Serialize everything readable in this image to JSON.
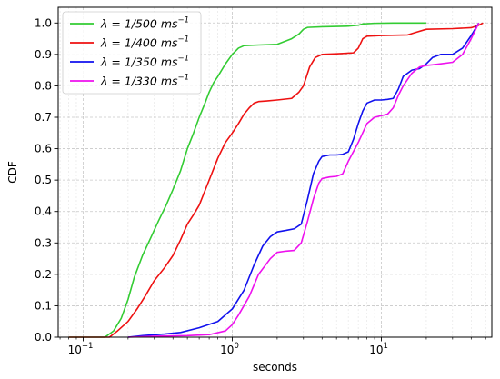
{
  "chart_data": {
    "type": "line",
    "xlabel": "seconds",
    "ylabel": "CDF",
    "xscale": "log",
    "xlim": [
      0.068,
      55
    ],
    "ylim": [
      0,
      1.05
    ],
    "grid": true,
    "legend_position": "top-left",
    "x_ticks": [
      {
        "value": 0.1,
        "base": "10",
        "exp": "−1"
      },
      {
        "value": 1,
        "base": "10",
        "exp": "0"
      },
      {
        "value": 10,
        "base": "10",
        "exp": "1"
      }
    ],
    "y_ticks": [
      "0.0",
      "0.1",
      "0.2",
      "0.3",
      "0.4",
      "0.5",
      "0.6",
      "0.7",
      "0.8",
      "0.9",
      "1.0"
    ],
    "series": [
      {
        "name": "λ = 1/500 ms⁻¹",
        "legend_text": "λ = 1/500",
        "legend_unit": "ms",
        "legend_exp": "−1",
        "color": "#33cc33",
        "x": [
          0.08,
          0.14,
          0.16,
          0.18,
          0.2,
          0.22,
          0.25,
          0.28,
          0.32,
          0.36,
          0.4,
          0.45,
          0.5,
          0.55,
          0.6,
          0.65,
          0.7,
          0.75,
          0.8,
          0.9,
          1.0,
          1.1,
          1.2,
          1.5,
          2.0,
          2.5,
          2.8,
          3.0,
          3.2,
          4.0,
          6.0,
          7.0,
          7.5,
          9.0,
          12.0,
          20.0
        ],
        "y": [
          0.0,
          0.0,
          0.02,
          0.06,
          0.12,
          0.19,
          0.26,
          0.31,
          0.37,
          0.42,
          0.47,
          0.53,
          0.6,
          0.65,
          0.7,
          0.74,
          0.78,
          0.81,
          0.83,
          0.87,
          0.9,
          0.92,
          0.928,
          0.93,
          0.932,
          0.95,
          0.965,
          0.98,
          0.986,
          0.988,
          0.99,
          0.993,
          0.997,
          0.999,
          1.0,
          1.0
        ]
      },
      {
        "name": "λ = 1/400 ms⁻¹",
        "legend_text": "λ = 1/400",
        "legend_unit": "ms",
        "legend_exp": "−1",
        "color": "#ee1111",
        "x": [
          0.08,
          0.15,
          0.17,
          0.2,
          0.23,
          0.26,
          0.3,
          0.35,
          0.4,
          0.45,
          0.5,
          0.55,
          0.6,
          0.7,
          0.8,
          0.9,
          1.0,
          1.1,
          1.2,
          1.3,
          1.4,
          1.5,
          1.7,
          2.0,
          2.5,
          2.8,
          3.0,
          3.3,
          3.6,
          4.0,
          5.0,
          6.5,
          7.0,
          7.5,
          8.0,
          10.0,
          15.0,
          17.0,
          20.0,
          30.0,
          40.0,
          45.0,
          48.0
        ],
        "y": [
          0.0,
          0.0,
          0.02,
          0.05,
          0.09,
          0.13,
          0.18,
          0.22,
          0.26,
          0.31,
          0.36,
          0.39,
          0.42,
          0.5,
          0.57,
          0.62,
          0.65,
          0.68,
          0.71,
          0.73,
          0.745,
          0.75,
          0.752,
          0.755,
          0.76,
          0.78,
          0.8,
          0.86,
          0.89,
          0.9,
          0.902,
          0.905,
          0.92,
          0.95,
          0.958,
          0.96,
          0.962,
          0.97,
          0.98,
          0.982,
          0.985,
          0.993,
          1.0
        ]
      },
      {
        "name": "λ = 1/350 ms⁻¹",
        "legend_text": "λ = 1/350",
        "legend_unit": "ms",
        "legend_exp": "−1",
        "color": "#1111ee",
        "x": [
          0.2,
          0.25,
          0.35,
          0.45,
          0.6,
          0.8,
          1.0,
          1.2,
          1.4,
          1.6,
          1.8,
          2.0,
          2.3,
          2.6,
          2.9,
          3.2,
          3.5,
          3.8,
          4.0,
          4.5,
          5.0,
          5.5,
          6.0,
          6.5,
          7.0,
          7.5,
          8.0,
          9.0,
          10.0,
          11.0,
          12.0,
          13.0,
          14.0,
          16.0,
          18.0,
          20.0,
          22.0,
          25.0,
          30.0,
          35.0,
          40.0,
          45.0
        ],
        "y": [
          0.0,
          0.005,
          0.01,
          0.015,
          0.03,
          0.05,
          0.09,
          0.15,
          0.23,
          0.29,
          0.32,
          0.335,
          0.34,
          0.345,
          0.36,
          0.44,
          0.52,
          0.56,
          0.575,
          0.58,
          0.58,
          0.582,
          0.59,
          0.63,
          0.68,
          0.72,
          0.745,
          0.755,
          0.755,
          0.757,
          0.76,
          0.79,
          0.83,
          0.85,
          0.855,
          0.87,
          0.89,
          0.9,
          0.9,
          0.92,
          0.96,
          1.0
        ]
      },
      {
        "name": "λ = 1/330 ms⁻¹",
        "legend_text": "λ = 1/330",
        "legend_unit": "ms",
        "legend_exp": "−1",
        "color": "#ee11ee",
        "x": [
          0.2,
          0.3,
          0.5,
          0.7,
          0.9,
          1.0,
          1.1,
          1.3,
          1.5,
          1.8,
          2.0,
          2.3,
          2.6,
          2.9,
          3.2,
          3.5,
          3.8,
          4.0,
          4.5,
          5.0,
          5.5,
          6.0,
          7.0,
          8.0,
          9.0,
          10.0,
          11.0,
          12.0,
          13.0,
          14.0,
          16.0,
          18.0,
          20.0,
          22.0,
          25.0,
          30.0,
          35.0,
          40.0,
          45.0
        ],
        "y": [
          0.0,
          0.003,
          0.005,
          0.008,
          0.02,
          0.04,
          0.07,
          0.13,
          0.2,
          0.25,
          0.27,
          0.274,
          0.276,
          0.3,
          0.37,
          0.44,
          0.49,
          0.505,
          0.51,
          0.512,
          0.52,
          0.56,
          0.62,
          0.68,
          0.7,
          0.705,
          0.71,
          0.73,
          0.77,
          0.8,
          0.84,
          0.86,
          0.865,
          0.867,
          0.87,
          0.875,
          0.9,
          0.95,
          1.0
        ]
      }
    ]
  }
}
